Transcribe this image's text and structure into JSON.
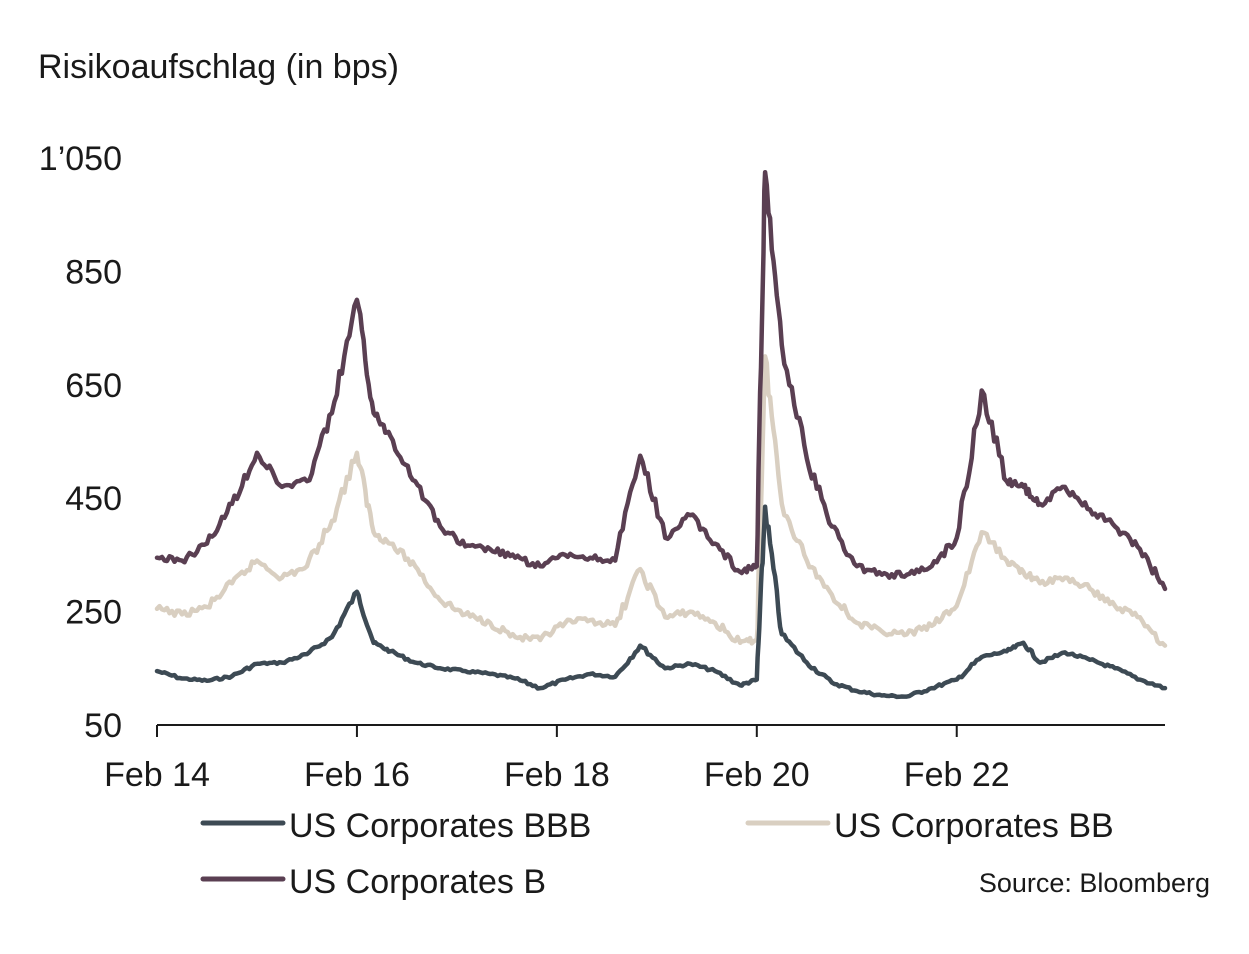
{
  "chart_data": {
    "type": "line",
    "title": "",
    "ylabel": "Risikoaufschlag (in bps)",
    "xlabel": "",
    "ylim": [
      50,
      1050
    ],
    "yticks": [
      50,
      250,
      450,
      650,
      850,
      1050
    ],
    "ytick_labels": [
      "50",
      "250",
      "450",
      "650",
      "850",
      "1’050"
    ],
    "xlim": [
      "2014-02",
      "2024-03"
    ],
    "xticks": [
      "2014-02",
      "2016-02",
      "2018-02",
      "2020-02",
      "2022-02"
    ],
    "xtick_labels": [
      "Feb 14",
      "Feb 16",
      "Feb 18",
      "Feb 20",
      "Feb 22"
    ],
    "grid": false,
    "legend_position": "bottom",
    "source": "Source: Bloomberg",
    "series": [
      {
        "name": "US Corporates BBB",
        "color": "#3d4a54",
        "points": [
          [
            "2014-02",
            145
          ],
          [
            "2014-05",
            132
          ],
          [
            "2014-08",
            128
          ],
          [
            "2014-11",
            136
          ],
          [
            "2015-02",
            158
          ],
          [
            "2015-05",
            160
          ],
          [
            "2015-08",
            175
          ],
          [
            "2015-11",
            205
          ],
          [
            "2016-02",
            285
          ],
          [
            "2016-04",
            195
          ],
          [
            "2016-06",
            180
          ],
          [
            "2016-09",
            160
          ],
          [
            "2016-12",
            150
          ],
          [
            "2017-03",
            145
          ],
          [
            "2017-06",
            140
          ],
          [
            "2017-09",
            132
          ],
          [
            "2017-12",
            115
          ],
          [
            "2018-03",
            130
          ],
          [
            "2018-06",
            140
          ],
          [
            "2018-09",
            135
          ],
          [
            "2018-12",
            190
          ],
          [
            "2019-03",
            150
          ],
          [
            "2019-06",
            158
          ],
          [
            "2019-09",
            145
          ],
          [
            "2019-12",
            120
          ],
          [
            "2020-02",
            130
          ],
          [
            "2020-03",
            435
          ],
          [
            "2020-05",
            210
          ],
          [
            "2020-08",
            160
          ],
          [
            "2020-11",
            125
          ],
          [
            "2021-02",
            110
          ],
          [
            "2021-05",
            102
          ],
          [
            "2021-08",
            100
          ],
          [
            "2021-11",
            115
          ],
          [
            "2022-02",
            130
          ],
          [
            "2022-05",
            170
          ],
          [
            "2022-08",
            180
          ],
          [
            "2022-10",
            195
          ],
          [
            "2022-12",
            160
          ],
          [
            "2023-03",
            178
          ],
          [
            "2023-06",
            165
          ],
          [
            "2023-09",
            150
          ],
          [
            "2023-12",
            130
          ],
          [
            "2024-03",
            115
          ]
        ]
      },
      {
        "name": "US Corporates BB",
        "color": "#d9cfc1",
        "points": [
          [
            "2014-02",
            255
          ],
          [
            "2014-05",
            245
          ],
          [
            "2014-08",
            258
          ],
          [
            "2014-11",
            300
          ],
          [
            "2015-02",
            340
          ],
          [
            "2015-05",
            310
          ],
          [
            "2015-08",
            330
          ],
          [
            "2015-11",
            410
          ],
          [
            "2016-02",
            530
          ],
          [
            "2016-04",
            390
          ],
          [
            "2016-06",
            370
          ],
          [
            "2016-09",
            330
          ],
          [
            "2016-12",
            270
          ],
          [
            "2017-03",
            245
          ],
          [
            "2017-06",
            230
          ],
          [
            "2017-09",
            205
          ],
          [
            "2017-12",
            200
          ],
          [
            "2018-03",
            230
          ],
          [
            "2018-06",
            235
          ],
          [
            "2018-09",
            225
          ],
          [
            "2018-12",
            325
          ],
          [
            "2019-03",
            240
          ],
          [
            "2019-06",
            250
          ],
          [
            "2019-09",
            230
          ],
          [
            "2019-12",
            195
          ],
          [
            "2020-02",
            200
          ],
          [
            "2020-03",
            700
          ],
          [
            "2020-05",
            440
          ],
          [
            "2020-08",
            340
          ],
          [
            "2020-11",
            280
          ],
          [
            "2021-02",
            230
          ],
          [
            "2021-05",
            215
          ],
          [
            "2021-08",
            210
          ],
          [
            "2021-11",
            225
          ],
          [
            "2022-02",
            260
          ],
          [
            "2022-05",
            390
          ],
          [
            "2022-08",
            340
          ],
          [
            "2022-10",
            320
          ],
          [
            "2022-12",
            300
          ],
          [
            "2023-03",
            310
          ],
          [
            "2023-06",
            290
          ],
          [
            "2023-09",
            260
          ],
          [
            "2023-12",
            240
          ],
          [
            "2024-03",
            190
          ]
        ]
      },
      {
        "name": "US Corporates B",
        "color": "#5a3f52",
        "points": [
          [
            "2014-02",
            345
          ],
          [
            "2014-05",
            340
          ],
          [
            "2014-08",
            370
          ],
          [
            "2014-11",
            440
          ],
          [
            "2015-02",
            530
          ],
          [
            "2015-05",
            470
          ],
          [
            "2015-08",
            480
          ],
          [
            "2015-11",
            600
          ],
          [
            "2016-02",
            800
          ],
          [
            "2016-04",
            600
          ],
          [
            "2016-06",
            560
          ],
          [
            "2016-09",
            480
          ],
          [
            "2016-12",
            400
          ],
          [
            "2017-03",
            365
          ],
          [
            "2017-06",
            360
          ],
          [
            "2017-09",
            345
          ],
          [
            "2017-12",
            330
          ],
          [
            "2018-03",
            350
          ],
          [
            "2018-06",
            345
          ],
          [
            "2018-09",
            340
          ],
          [
            "2018-12",
            525
          ],
          [
            "2019-03",
            380
          ],
          [
            "2019-06",
            420
          ],
          [
            "2019-09",
            370
          ],
          [
            "2019-12",
            320
          ],
          [
            "2020-02",
            330
          ],
          [
            "2020-03",
            1025
          ],
          [
            "2020-05",
            720
          ],
          [
            "2020-08",
            520
          ],
          [
            "2020-11",
            400
          ],
          [
            "2021-02",
            330
          ],
          [
            "2021-05",
            315
          ],
          [
            "2021-08",
            315
          ],
          [
            "2021-11",
            330
          ],
          [
            "2022-02",
            380
          ],
          [
            "2022-05",
            640
          ],
          [
            "2022-08",
            480
          ],
          [
            "2022-10",
            470
          ],
          [
            "2022-12",
            440
          ],
          [
            "2023-03",
            470
          ],
          [
            "2023-06",
            430
          ],
          [
            "2023-09",
            400
          ],
          [
            "2023-12",
            360
          ],
          [
            "2024-03",
            290
          ]
        ]
      }
    ]
  }
}
